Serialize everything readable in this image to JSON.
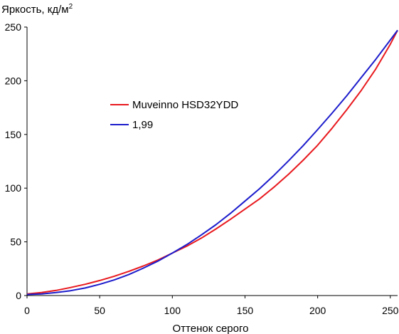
{
  "chart_data": {
    "type": "line",
    "ylabel": "Яркость, кд/м",
    "ylabel_sup": "2",
    "xlabel": "Оттенок серого",
    "xlim": [
      0,
      255
    ],
    "ylim": [
      0,
      250
    ],
    "xticks": [
      0,
      50,
      100,
      150,
      200,
      250
    ],
    "yticks": [
      0,
      50,
      100,
      150,
      200,
      250
    ],
    "grid": false,
    "legend_position": "center-left",
    "series": [
      {
        "name": "Muveinno HSD32YDD",
        "color": "#e8191e",
        "x": [
          0,
          10,
          20,
          30,
          40,
          50,
          60,
          70,
          80,
          90,
          100,
          110,
          120,
          130,
          140,
          150,
          160,
          170,
          180,
          190,
          200,
          210,
          220,
          230,
          240,
          250,
          255
        ],
        "y": [
          1.5,
          2.8,
          4.8,
          7.5,
          10.5,
          14,
          18,
          22.5,
          27.5,
          33,
          39.5,
          46,
          53.5,
          62,
          71,
          80.5,
          90,
          101,
          113,
          126,
          140,
          156,
          173,
          191,
          211,
          234,
          247
        ]
      },
      {
        "name": "1,99",
        "color": "#1c1ccc",
        "x": [
          0,
          10,
          20,
          30,
          40,
          50,
          60,
          70,
          80,
          90,
          100,
          110,
          120,
          130,
          140,
          150,
          160,
          170,
          180,
          190,
          200,
          210,
          220,
          230,
          240,
          250,
          255
        ],
        "y": [
          1.0,
          1.5,
          2.8,
          4.5,
          7.0,
          10.5,
          14.5,
          19.5,
          25.5,
          32,
          39.5,
          47.5,
          56.5,
          66,
          76.5,
          88,
          99.5,
          112,
          125.5,
          139.5,
          154.5,
          170,
          186,
          203,
          220,
          238,
          247
        ]
      }
    ]
  }
}
